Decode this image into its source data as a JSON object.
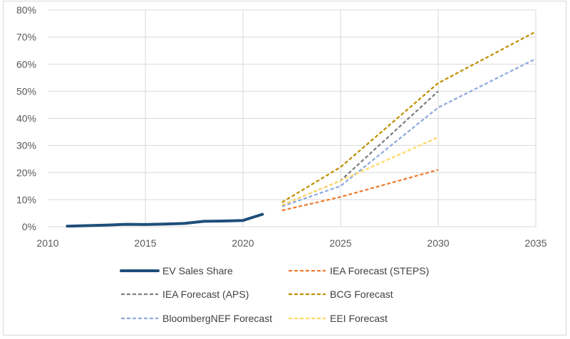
{
  "chart_data": {
    "type": "line",
    "title": "",
    "xlabel": "",
    "ylabel": "",
    "xlim": [
      2010,
      2035
    ],
    "ylim": [
      0,
      80
    ],
    "x_ticks": [
      "2010",
      "2015",
      "2020",
      "2025",
      "2030",
      "2035"
    ],
    "y_ticks": [
      "0%",
      "10%",
      "20%",
      "30%",
      "40%",
      "50%",
      "60%",
      "70%",
      "80%"
    ],
    "grid": true,
    "legend_position": "bottom",
    "series": [
      {
        "name": "EV Sales Share",
        "color": "#1f4e79",
        "dashed": false,
        "x": [
          2011,
          2012,
          2013,
          2014,
          2015,
          2016,
          2017,
          2018,
          2019,
          2020,
          2021
        ],
        "y": [
          0.2,
          0.4,
          0.6,
          0.9,
          0.8,
          1.0,
          1.2,
          2.0,
          2.1,
          2.3,
          4.6
        ]
      },
      {
        "name": "IEA Forecast (STEPS)",
        "color": "#ed7d31",
        "dashed": true,
        "x": [
          2022,
          2025,
          2030
        ],
        "y": [
          6.0,
          11.0,
          21.0
        ]
      },
      {
        "name": "IEA Forecast (APS)",
        "color": "#7f7f7f",
        "dashed": true,
        "x": [
          2022,
          2025,
          2030
        ],
        "y": [
          8.0,
          17.0,
          50.0
        ]
      },
      {
        "name": "BCG Forecast",
        "color": "#bf9000",
        "dashed": true,
        "x": [
          2022,
          2025,
          2030,
          2035
        ],
        "y": [
          9.0,
          22.0,
          53.0,
          72.0
        ]
      },
      {
        "name": "BloombergNEF Forecast",
        "color": "#8faadc",
        "dashed": true,
        "x": [
          2022,
          2025,
          2030,
          2035
        ],
        "y": [
          7.5,
          15.0,
          44.0,
          62.0
        ]
      },
      {
        "name": "EEI Forecast",
        "color": "#ffd966",
        "dashed": true,
        "x": [
          2022,
          2025,
          2030
        ],
        "y": [
          8.0,
          17.0,
          33.0
        ]
      }
    ]
  }
}
